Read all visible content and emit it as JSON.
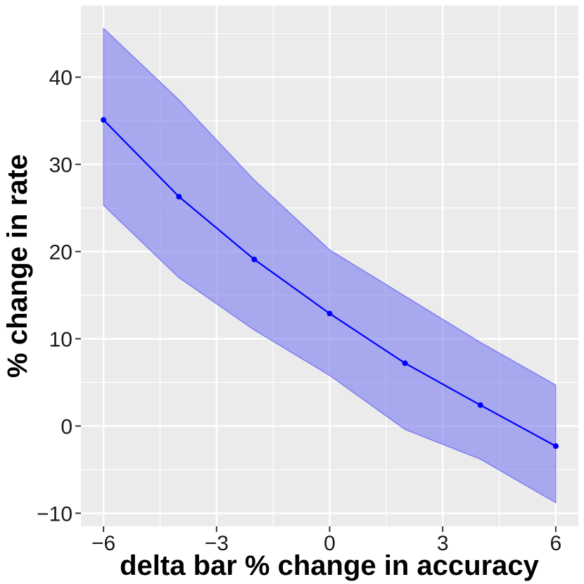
{
  "chart_data": {
    "type": "line",
    "title": "",
    "xlabel": "delta bar % change in accuracy",
    "ylabel": "% change in rate",
    "xlim": [
      -6.6,
      6.6
    ],
    "ylim": [
      -11.5,
      48.2
    ],
    "x_ticks": [
      -6,
      -3,
      0,
      3,
      6
    ],
    "x_tick_labels": [
      "−6",
      "−3",
      "0",
      "3",
      "6"
    ],
    "y_ticks": [
      -10,
      0,
      10,
      20,
      30,
      40
    ],
    "y_tick_labels": [
      "−10",
      "0",
      "10",
      "20",
      "30",
      "40"
    ],
    "grid": true,
    "series": [
      {
        "x": [
          -6,
          -4,
          -2,
          0,
          2,
          4,
          6
        ],
        "y": [
          35.1,
          26.3,
          19.1,
          12.9,
          7.2,
          2.4,
          -2.3
        ],
        "lower": [
          25.3,
          17.0,
          11.0,
          5.8,
          -0.4,
          -3.8,
          -8.8
        ],
        "upper": [
          45.6,
          37.4,
          28.2,
          20.2,
          14.9,
          9.6,
          4.7
        ],
        "line_color": "#0000ff",
        "band_color": "#8080f0"
      }
    ],
    "panel_background": "#ebebeb",
    "grid_color": "#ffffff"
  }
}
